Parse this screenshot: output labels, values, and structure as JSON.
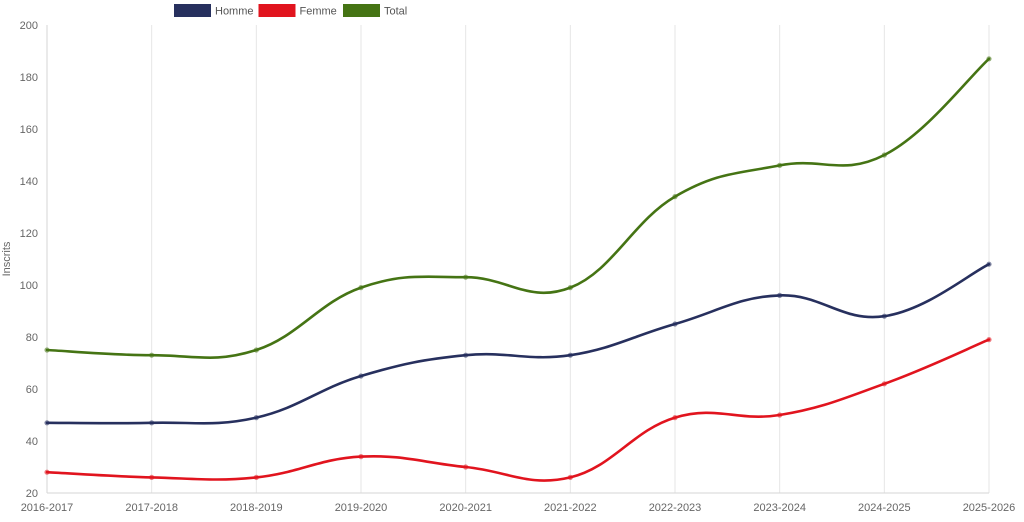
{
  "chart_data": {
    "type": "line",
    "title": "",
    "xlabel": "",
    "ylabel": "Inscrits",
    "ylim": [
      20,
      200
    ],
    "yticks": [
      20,
      40,
      60,
      80,
      100,
      120,
      140,
      160,
      180,
      200
    ],
    "grid": true,
    "legend_position": "top-left",
    "categories": [
      "2016-2017",
      "2017-2018",
      "2018-2019",
      "2019-2020",
      "2020-2021",
      "2021-2022",
      "2022-2023",
      "2023-2024",
      "2024-2025",
      "2025-2026"
    ],
    "series": [
      {
        "name": "Homme",
        "color": "#27305e",
        "values": [
          47,
          47,
          49,
          65,
          73,
          73,
          85,
          96,
          88,
          108
        ]
      },
      {
        "name": "Femme",
        "color": "#e1141e",
        "values": [
          28,
          26,
          26,
          34,
          30,
          26,
          49,
          50,
          62,
          79
        ]
      },
      {
        "name": "Total",
        "color": "#457414",
        "values": [
          75,
          73,
          75,
          99,
          103,
          99,
          134,
          146,
          150,
          187
        ]
      }
    ]
  }
}
